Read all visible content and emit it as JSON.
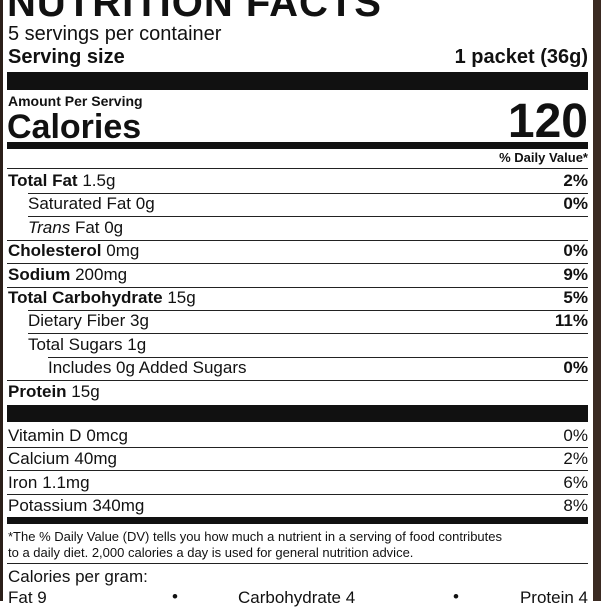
{
  "header": {
    "title": "NUTRITION FACTS",
    "servings": "5 servings per container",
    "serving_size_label": "Serving size",
    "serving_size": "1 packet (36g)"
  },
  "calories": {
    "amount_label": "Amount Per Serving",
    "label": "Calories",
    "value": "120"
  },
  "dv_header": "% Daily Value*",
  "nutrients": [
    {
      "name": "Total Fat",
      "amount": "1.5g",
      "dv": "2%"
    },
    {
      "name": "Saturated Fat",
      "amount": "0g",
      "dv": "0%"
    },
    {
      "name": "Trans",
      "amount": "Fat 0g"
    },
    {
      "name": "Cholesterol",
      "amount": "0mg",
      "dv": "0%"
    },
    {
      "name": "Sodium",
      "amount": "200mg",
      "dv": "9%"
    },
    {
      "name": "Total Carbohydrate",
      "amount": "15g",
      "dv": "5%"
    },
    {
      "name": "Dietary Fiber",
      "amount": "3g",
      "dv": "11%"
    },
    {
      "name": "Total Sugars",
      "amount": "1g"
    },
    {
      "name": "Includes 0g Added Sugars",
      "dv": "0%"
    },
    {
      "name": "Protein",
      "amount": "15g"
    }
  ],
  "vitamins": [
    {
      "name": "Vitamin D",
      "amount": "0mcg",
      "dv": "0%"
    },
    {
      "name": "Calcium",
      "amount": "40mg",
      "dv": "2%"
    },
    {
      "name": "Iron",
      "amount": "1.1mg",
      "dv": "6%"
    },
    {
      "name": "Potassium",
      "amount": "340mg",
      "dv": "8%"
    }
  ],
  "footnote": [
    "*The % Daily Value (DV) tells you how much a nutrient in a serving of food contributes",
    "to a daily diet. 2,000 calories a day is used for general nutrition advice."
  ],
  "calories_per_gram": {
    "label": "Calories per gram:",
    "items": [
      "Fat 9",
      "Carbohydrate 4",
      "Protein 4"
    ]
  }
}
